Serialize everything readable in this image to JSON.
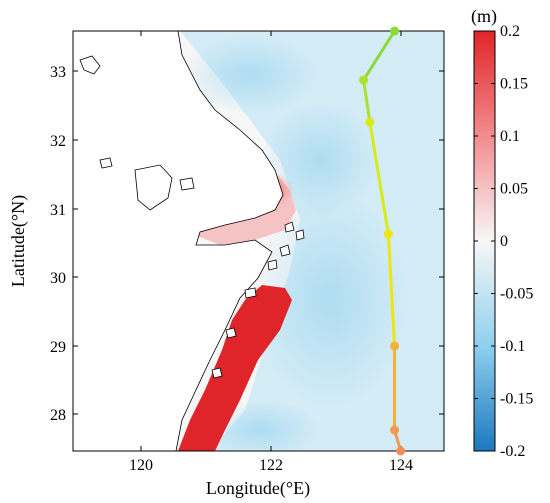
{
  "chart_data": {
    "type": "map",
    "xlabel": "Longitude(°E)",
    "ylabel": "Latitude(°N)",
    "xlim": [
      119,
      125
    ],
    "ylim": [
      27.5,
      33.5
    ],
    "x_ticks": [
      "120",
      "122",
      "124"
    ],
    "y_ticks": [
      "28",
      "29",
      "30",
      "31",
      "32",
      "33"
    ],
    "colorbar": {
      "unit": "(m)",
      "range": [
        -0.2,
        0.2
      ],
      "ticks": [
        "0.2",
        "0.15",
        "0.1",
        "0.05",
        "0",
        "-0.05",
        "-0.1",
        "-0.15",
        "-0.2"
      ],
      "colors": {
        "max": "#e0252a",
        "mid": "#f7f7f7",
        "min": "#1c78c0"
      }
    },
    "typhoon_track": {
      "points": [
        {
          "lon": 124.3,
          "lat": 27.45,
          "color": "#f08f5a"
        },
        {
          "lon": 124.2,
          "lat": 27.8,
          "color": "#f39a52"
        },
        {
          "lon": 124.2,
          "lat": 29.0,
          "color": "#f6b232"
        },
        {
          "lon": 124.1,
          "lat": 30.6,
          "color": "#eee60f"
        },
        {
          "lon": 123.8,
          "lat": 32.2,
          "color": "#d8ea18"
        },
        {
          "lon": 123.7,
          "lat": 32.8,
          "color": "#a9e22f"
        },
        {
          "lon": 124.2,
          "lat": 33.5,
          "color": "#8bd937"
        }
      ]
    }
  }
}
